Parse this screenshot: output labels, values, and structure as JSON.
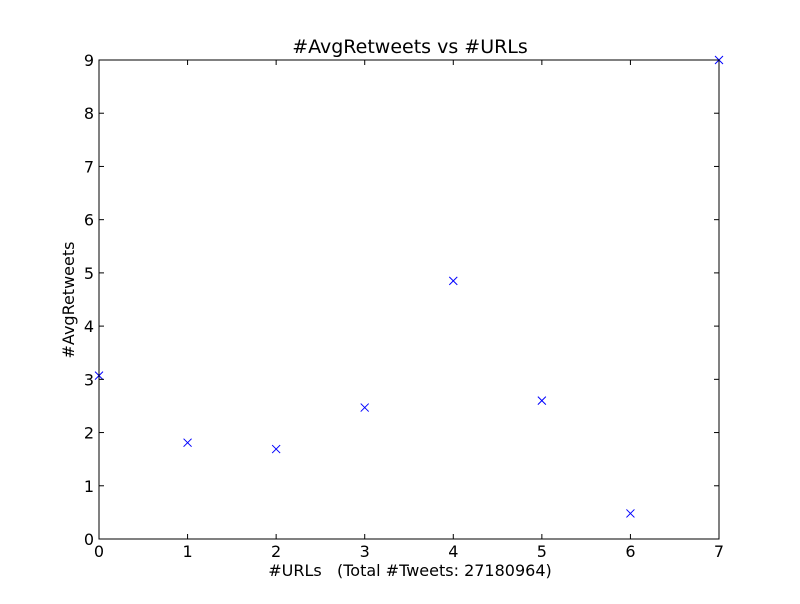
{
  "chart_data": {
    "type": "scatter",
    "title": "#AvgRetweets vs #URLs",
    "xlabel": "#URLs   (Total #Tweets: 27180964)",
    "ylabel": "#AvgRetweets",
    "xlim": [
      0,
      7
    ],
    "ylim": [
      0,
      9
    ],
    "xticks": [
      "0",
      "1",
      "2",
      "3",
      "4",
      "5",
      "6",
      "7"
    ],
    "yticks": [
      "0",
      "1",
      "2",
      "3",
      "4",
      "5",
      "6",
      "7",
      "8",
      "9"
    ],
    "grid": false,
    "marker": "x",
    "series": [
      {
        "color": "#0000ff",
        "x": [
          0,
          1,
          2,
          3,
          4,
          5,
          6,
          7
        ],
        "y": [
          3.07,
          1.81,
          1.69,
          2.47,
          4.85,
          2.6,
          0.48,
          9.0
        ]
      }
    ]
  }
}
